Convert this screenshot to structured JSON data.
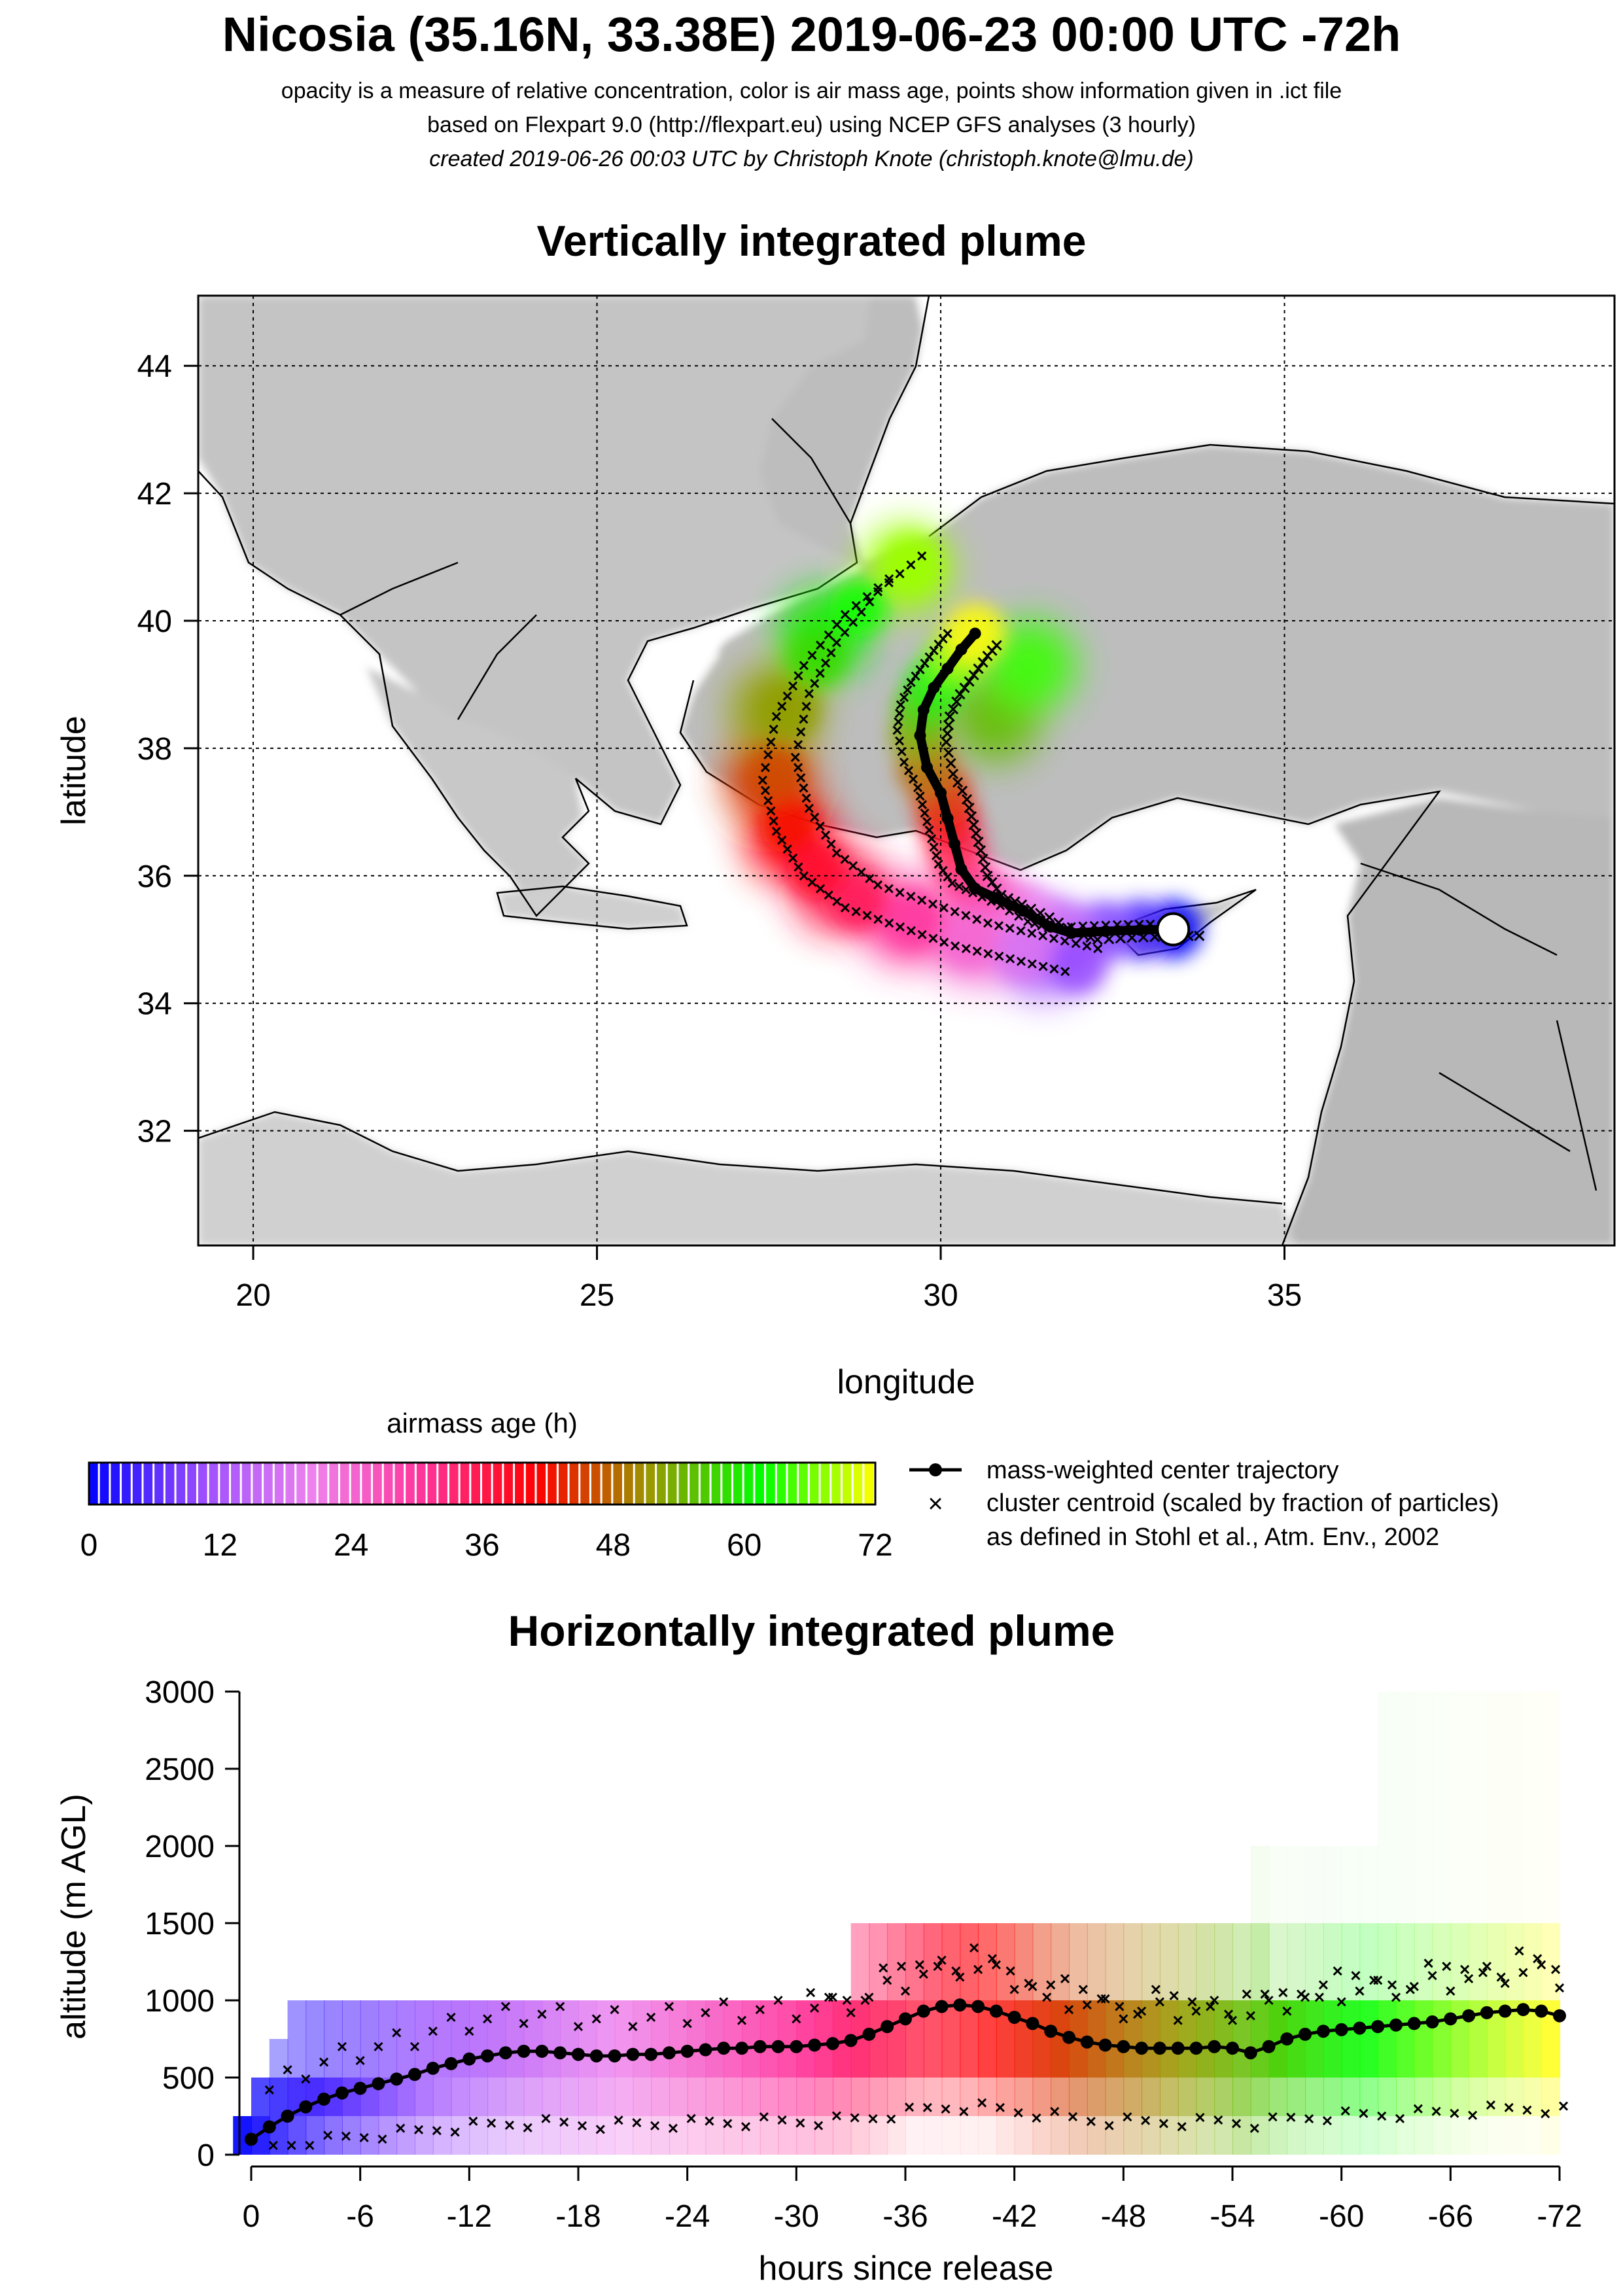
{
  "header": {
    "title": "Nicosia (35.16N, 33.38E) 2019-06-23 00:00 UTC -72h",
    "subtitle_1": "opacity is a measure of relative concentration, color is air mass age, points show information given in .ict file",
    "subtitle_2": "based on Flexpart 9.0 (http://flexpart.eu) using NCEP GFS analyses (3 hourly)",
    "subtitle_3": "created 2019-06-26 00:03 UTC by Christoph Knote (christoph.knote@lmu.de)"
  },
  "colors": {
    "age_scale": [
      "#0000ff",
      "#9a4dff",
      "#ee82ee",
      "#ff3399",
      "#ff0000",
      "#999900",
      "#00ff00",
      "#ffff00"
    ],
    "trajectory": "#000000",
    "land": "#bdbdbd",
    "sea": "#ffffff"
  },
  "legend": {
    "colorbar_label": "airmass age (h)",
    "colorbar_ticks": [
      "0",
      "12",
      "24",
      "36",
      "48",
      "60",
      "72"
    ],
    "trajectory_label": "mass-weighted center trajectory",
    "cluster_label": "cluster centroid (scaled by fraction of particles)",
    "cluster_label_2": "as defined in Stohl et al., Atm. Env., 2002"
  },
  "chart_data": [
    {
      "type": "scatter",
      "title": "Vertically integrated plume",
      "xlabel": "longitude",
      "ylabel": "latitude",
      "xlim": [
        19.2,
        39.8
      ],
      "ylim": [
        30.2,
        45.1
      ],
      "x_ticks": [
        20,
        25,
        30,
        35
      ],
      "y_ticks": [
        32,
        34,
        36,
        38,
        40,
        42,
        44
      ],
      "grid": true,
      "release_point": {
        "lon": 33.38,
        "lat": 35.16
      },
      "center_trajectory": {
        "lon": [
          33.38,
          32.9,
          32.4,
          31.9,
          31.6,
          31.2,
          30.8,
          30.5,
          30.3,
          30.2,
          30.1,
          30.0,
          29.8,
          29.7,
          29.75,
          29.9,
          30.1,
          30.3,
          30.5
        ],
        "lat": [
          35.16,
          35.15,
          35.13,
          35.1,
          35.2,
          35.45,
          35.65,
          35.8,
          36.1,
          36.5,
          36.9,
          37.3,
          37.7,
          38.2,
          38.6,
          38.95,
          39.25,
          39.55,
          39.8
        ]
      },
      "plume_points": [
        {
          "lon": 31.5,
          "lat": 34.8,
          "age": 12
        },
        {
          "lon": 30.5,
          "lat": 35.0,
          "age": 24
        },
        {
          "lon": 29.5,
          "lat": 35.3,
          "age": 30
        },
        {
          "lon": 28.5,
          "lat": 35.8,
          "age": 36
        },
        {
          "lon": 27.8,
          "lat": 36.6,
          "age": 40
        },
        {
          "lon": 27.5,
          "lat": 37.5,
          "age": 45
        },
        {
          "lon": 27.6,
          "lat": 38.6,
          "age": 52
        },
        {
          "lon": 28.3,
          "lat": 39.8,
          "age": 60
        },
        {
          "lon": 29.5,
          "lat": 40.8,
          "age": 68
        },
        {
          "lon": 30.8,
          "lat": 38.5,
          "age": 55
        },
        {
          "lon": 31.3,
          "lat": 39.3,
          "age": 64
        }
      ]
    },
    {
      "type": "scatter",
      "title": "Horizontally integrated plume",
      "xlabel": "hours since release",
      "ylabel": "altitude (m AGL)",
      "xlim": [
        0,
        -72
      ],
      "ylim": [
        0,
        3000
      ],
      "x_ticks": [
        "0",
        "-6",
        "-12",
        "-18",
        "-24",
        "-30",
        "-36",
        "-42",
        "-48",
        "-54",
        "-60",
        "-66",
        "-72"
      ],
      "y_ticks": [
        "0",
        "500",
        "1000",
        "1500",
        "2000",
        "2500",
        "3000"
      ],
      "center_trajectory": {
        "hours": [
          0,
          -1,
          -2,
          -3,
          -4,
          -5,
          -6,
          -7,
          -8,
          -9,
          -10,
          -11,
          -12,
          -13,
          -14,
          -15,
          -16,
          -17,
          -18,
          -19,
          -20,
          -21,
          -22,
          -23,
          -24,
          -25,
          -26,
          -27,
          -28,
          -29,
          -30,
          -31,
          -32,
          -33,
          -34,
          -35,
          -36,
          -37,
          -38,
          -39,
          -40,
          -41,
          -42,
          -43,
          -44,
          -45,
          -46,
          -47,
          -48,
          -49,
          -50,
          -51,
          -52,
          -53,
          -54,
          -55,
          -56,
          -57,
          -58,
          -59,
          -60,
          -61,
          -62,
          -63,
          -64,
          -65,
          -66,
          -67,
          -68,
          -69,
          -70,
          -71,
          -72
        ],
        "altitude": [
          100,
          180,
          250,
          310,
          360,
          400,
          430,
          460,
          490,
          520,
          560,
          590,
          620,
          640,
          660,
          670,
          670,
          660,
          650,
          640,
          640,
          650,
          650,
          660,
          670,
          680,
          690,
          690,
          700,
          700,
          700,
          710,
          720,
          740,
          780,
          830,
          880,
          930,
          960,
          970,
          960,
          930,
          890,
          850,
          800,
          760,
          730,
          710,
          700,
          690,
          690,
          690,
          690,
          700,
          690,
          660,
          700,
          750,
          780,
          800,
          810,
          820,
          830,
          840,
          850,
          860,
          880,
          900,
          920,
          930,
          940,
          930,
          900
        ]
      }
    }
  ]
}
